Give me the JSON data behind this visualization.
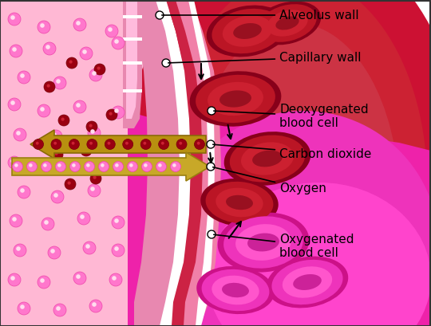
{
  "background_color": "#ffffff",
  "alveolus_bg": "#ffb8d4",
  "alveolus_wall_outer": "#f090b8",
  "alveolus_wall_inner_white": "#ffffff",
  "capillary_wall_dark": "#cc1133",
  "capillary_upper_bg": "#cc2233",
  "capillary_lower_bg": "#ee22aa",
  "capillary_lower_mid": "#dd44bb",
  "cell_deoxy_outer": "#aa1122",
  "cell_deoxy_mid": "#cc2233",
  "cell_deoxy_inner": "#881122",
  "cell_oxy_outer": "#ee44cc",
  "cell_oxy_mid": "#dd33bb",
  "cell_oxy_inner": "#aa2299",
  "pink_dot_fill": "#ff77cc",
  "pink_dot_edge": "#ee44aa",
  "dark_red_dot": "#990011",
  "arrow_co2_fill": "#b89010",
  "arrow_co2_edge": "#8a6a08",
  "arrow_o2_fill": "#c8a828",
  "arrow_o2_edge": "#9a8010",
  "label_fontsize": 11,
  "labels": {
    "alveolus_wall": "Alveolus wall",
    "capillary_wall": "Capillary wall",
    "deoxygenated": "Deoxygenated\nblood cell",
    "carbon_dioxide": "Carbon dioxide",
    "oxygen": "Oxygen",
    "oxygenated": "Oxygenated\nblood cell"
  },
  "figsize": [
    5.4,
    4.09
  ],
  "dpi": 100
}
